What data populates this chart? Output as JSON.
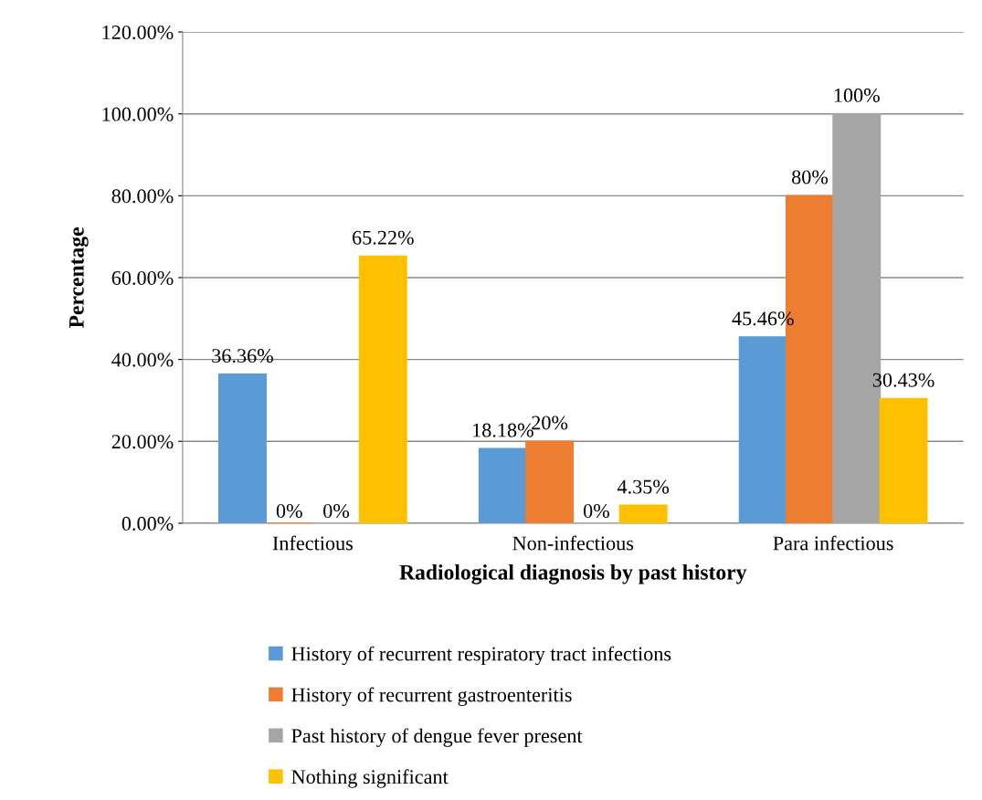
{
  "chart_data": {
    "type": "bar",
    "xlabel": "Radiological diagnosis by past history",
    "ylabel": "Percentage",
    "categories": [
      "Infectious",
      "Non-infectious",
      "Para infectious"
    ],
    "series": [
      {
        "name": "History of recurrent respiratory tract infections",
        "color": "#5b9bd5",
        "values": [
          36.36,
          18.18,
          45.46
        ],
        "value_labels": [
          "36.36%",
          "18.18%",
          "45.46%"
        ]
      },
      {
        "name": "History of recurrent gastroenteritis",
        "color": "#ed7d31",
        "values": [
          0,
          20,
          80
        ],
        "value_labels": [
          "0%",
          "20%",
          "80%"
        ]
      },
      {
        "name": "Past history of dengue fever present",
        "color": "#a5a5a5",
        "values": [
          0,
          0,
          100
        ],
        "value_labels": [
          "0%",
          "0%",
          "100%"
        ]
      },
      {
        "name": "Nothing significant",
        "color": "#ffc000",
        "values": [
          65.22,
          4.35,
          30.43
        ],
        "value_labels": [
          "65.22%",
          "4.35%",
          "30.43%"
        ]
      }
    ],
    "ylim": [
      0,
      120
    ],
    "yticks": [
      {
        "value": 0,
        "label": "0.00%"
      },
      {
        "value": 20,
        "label": "20.00%"
      },
      {
        "value": 40,
        "label": "40.00%"
      },
      {
        "value": 60,
        "label": "60.00%"
      },
      {
        "value": 80,
        "label": "80.00%"
      },
      {
        "value": 100,
        "label": "100.00%"
      },
      {
        "value": 120,
        "label": "120.00%"
      }
    ],
    "grid": "y",
    "legend": "bottom"
  }
}
